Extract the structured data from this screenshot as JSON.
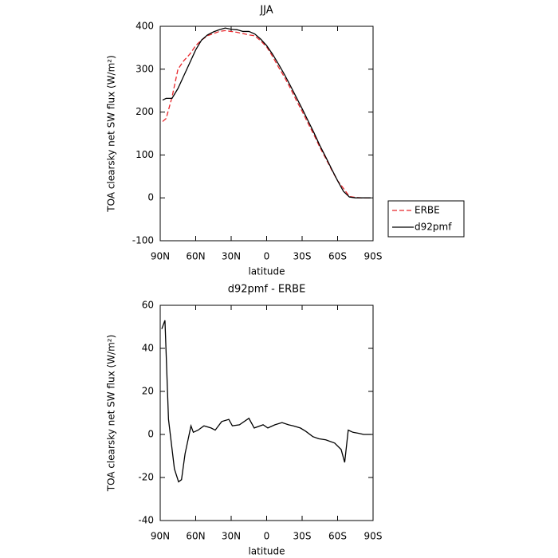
{
  "chart_data": [
    {
      "type": "line",
      "title": "JJA",
      "xlabel": "latitude",
      "ylabel": "TOA clearsky net SW flux (W/m²)",
      "x": [
        88,
        85,
        80,
        75,
        70,
        65,
        60,
        55,
        50,
        45,
        40,
        35,
        30,
        25,
        20,
        15,
        10,
        5,
        0,
        -5,
        -10,
        -15,
        -20,
        -25,
        -30,
        -35,
        -40,
        -45,
        -50,
        -55,
        -60,
        -65,
        -70,
        -75,
        -80,
        -85,
        -88
      ],
      "series": [
        {
          "name": "ERBE",
          "color": "#e8262b",
          "dash": true,
          "values": [
            178,
            185,
            235,
            300,
            320,
            335,
            355,
            368,
            378,
            383,
            388,
            390,
            388,
            386,
            383,
            380,
            378,
            366,
            352,
            330,
            305,
            282,
            256,
            228,
            202,
            174,
            147,
            118,
            92,
            65,
            40,
            22,
            3,
            1,
            0,
            0,
            0
          ]
        },
        {
          "name": "d92pmf",
          "color": "#000000",
          "dash": false,
          "values": [
            228,
            232,
            232,
            255,
            285,
            315,
            345,
            368,
            380,
            387,
            392,
            396,
            393,
            392,
            388,
            388,
            382,
            370,
            355,
            335,
            312,
            288,
            262,
            235,
            208,
            180,
            152,
            122,
            95,
            67,
            40,
            15,
            2,
            0,
            0,
            0,
            0
          ]
        }
      ],
      "xlim": [
        90,
        -90
      ],
      "xticks": [
        {
          "value": 90,
          "label": "90N"
        },
        {
          "value": 60,
          "label": "60N"
        },
        {
          "value": 30,
          "label": "30N"
        },
        0,
        {
          "value": -30,
          "label": "30S"
        },
        {
          "value": -60,
          "label": "60S"
        },
        {
          "value": -90,
          "label": "90S"
        }
      ],
      "ylim": [
        -100,
        400
      ],
      "yticks": [
        -100,
        0,
        100,
        200,
        300,
        400
      ],
      "legend": "right"
    },
    {
      "type": "line",
      "title": "d92pmf - ERBE",
      "xlabel": "latitude",
      "ylabel": "TOA clearsky net SW flux (W/m²)",
      "x": [
        88.7,
        86,
        83,
        78,
        74.5,
        72,
        69,
        64,
        62,
        58,
        53,
        47,
        43.5,
        38,
        32,
        29,
        23,
        15,
        10.5,
        3,
        -1,
        -7,
        -13,
        -18.5,
        -22.5,
        -28.5,
        -33,
        -39,
        -44,
        -50,
        -57.5,
        -63,
        -66,
        -69,
        -73,
        -78,
        -82,
        -88.5
      ],
      "series": [
        {
          "color": "#000000",
          "dash": false,
          "values": [
            49,
            53,
            7,
            -16,
            -22,
            -21,
            -9,
            4,
            1,
            2,
            4,
            3,
            2,
            6,
            7,
            4,
            4.5,
            7.5,
            3,
            4.5,
            3,
            4.5,
            5.5,
            4.5,
            4,
            3,
            1.5,
            -1,
            -2,
            -2.5,
            -4,
            -7,
            -13,
            2,
            1,
            0.5,
            0,
            0
          ]
        }
      ],
      "xlim": [
        90,
        -90
      ],
      "xticks": [
        {
          "value": 90,
          "label": "90N"
        },
        {
          "value": 60,
          "label": "60N"
        },
        {
          "value": 30,
          "label": "30N"
        },
        0,
        {
          "value": -30,
          "label": "30S"
        },
        {
          "value": -60,
          "label": "60S"
        },
        {
          "value": -90,
          "label": "90S"
        }
      ],
      "ylim": [
        -40,
        60
      ],
      "yticks": [
        -40,
        -20,
        0,
        20,
        40,
        60
      ]
    }
  ]
}
